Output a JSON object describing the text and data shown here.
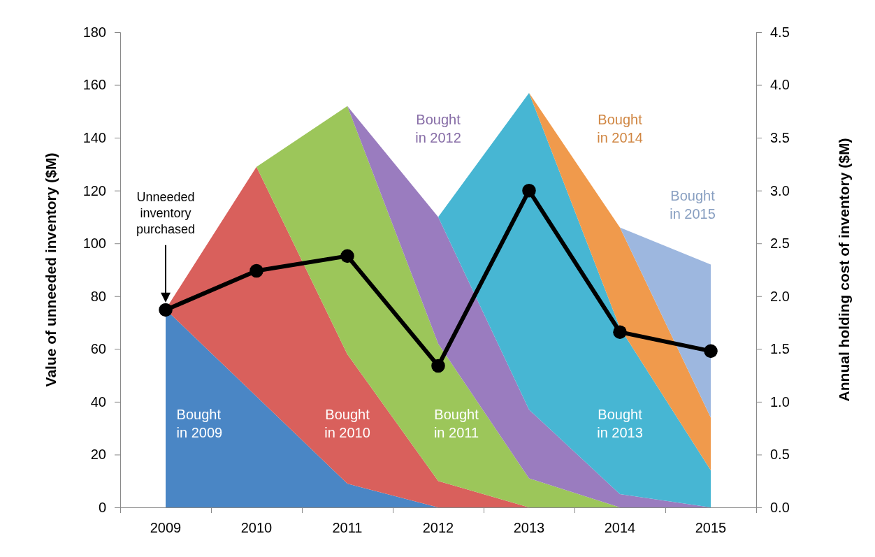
{
  "chart_data": {
    "type": "area",
    "stacked": true,
    "categories": [
      "2009",
      "2010",
      "2011",
      "2012",
      "2013",
      "2014",
      "2015"
    ],
    "ylabel": "Value of unneeded inventory ($M)",
    "y2label": "Annual holding cost of inventory ($M)",
    "ylim": [
      0,
      180
    ],
    "yticks": [
      0,
      20,
      40,
      60,
      80,
      100,
      120,
      140,
      160,
      180
    ],
    "y2lim": [
      0,
      4.5
    ],
    "y2ticks": [
      {
        "value": 0,
        "label": "0.0"
      },
      {
        "value": 0.5,
        "label": "0.5"
      },
      {
        "value": 1,
        "label": "1.0"
      },
      {
        "value": 1.5,
        "label": "1.5"
      },
      {
        "value": 2,
        "label": "2.0"
      },
      {
        "value": 2.5,
        "label": "2.5"
      },
      {
        "value": 3,
        "label": "3.0"
      },
      {
        "value": 3.5,
        "label": "3.5"
      },
      {
        "value": 4,
        "label": "4.0"
      },
      {
        "value": 4.5,
        "label": "4.5"
      }
    ],
    "series": [
      {
        "color": "#4a86c5",
        "values": [
          75,
          42,
          9,
          0,
          0,
          0,
          0
        ]
      },
      {
        "color": "#d9605c",
        "values": [
          0,
          87,
          49,
          10,
          0,
          0,
          0
        ]
      },
      {
        "color": "#9cc65a",
        "values": [
          null,
          0,
          94,
          52,
          11,
          0,
          0
        ]
      },
      {
        "color": "#9a7cbf",
        "values": [
          null,
          null,
          0,
          48,
          26,
          5,
          0
        ]
      },
      {
        "color": "#47b6d3",
        "values": [
          null,
          null,
          null,
          0,
          120,
          63,
          14
        ]
      },
      {
        "color": "#f09a4c",
        "values": [
          null,
          null,
          null,
          null,
          0,
          38,
          20
        ]
      },
      {
        "color": "#9db7df",
        "values": [
          null,
          null,
          null,
          null,
          null,
          0,
          58
        ]
      },
      {
        "type": "line",
        "axis": "y2",
        "color": "#000000",
        "marker": "circle",
        "values": [
          1.87,
          2.24,
          2.38,
          1.34,
          3.0,
          1.66,
          1.48
        ]
      }
    ],
    "grid": false,
    "annotations": [
      "Unneeded inventory purchased",
      "Bought in 2009",
      "Bought in 2010",
      "Bought in 2011",
      "Bought in 2012",
      "Bought in 2013",
      "Bought in 2014",
      "Bought in 2015"
    ]
  }
}
